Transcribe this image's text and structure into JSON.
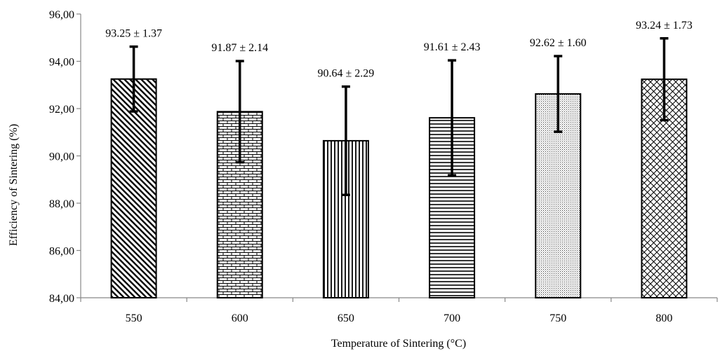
{
  "chart_data": {
    "type": "bar",
    "title": "",
    "xlabel": "Temperature of Sintering (°C)",
    "ylabel": "Efficiency of Sintering (%)",
    "ylim": [
      84,
      96
    ],
    "yticks": [
      84,
      86,
      88,
      90,
      92,
      94,
      96
    ],
    "ytick_labels": [
      "84,00",
      "86,00",
      "88,00",
      "90,00",
      "92,00",
      "94,00",
      "96,00"
    ],
    "categories": [
      "550",
      "600",
      "650",
      "700",
      "750",
      "800"
    ],
    "values": [
      93.25,
      91.87,
      90.64,
      91.61,
      92.62,
      93.24
    ],
    "errors": [
      1.37,
      2.14,
      2.29,
      2.43,
      1.6,
      1.73
    ],
    "labels": [
      "93.25 ± 1.37",
      "91.87 ± 2.14",
      "90.64 ± 2.29",
      "91.61 ± 2.43",
      "92.62 ± 1.60",
      "93.24 ± 1.73"
    ],
    "patterns": [
      "diagonal-hatch",
      "brick",
      "vertical-lines",
      "horizontal-lines",
      "dots",
      "diamond-lattice"
    ],
    "grid": false,
    "legend": "none",
    "colors": {
      "bar_stroke": "#000000",
      "bar_fill": "#ffffff"
    }
  }
}
